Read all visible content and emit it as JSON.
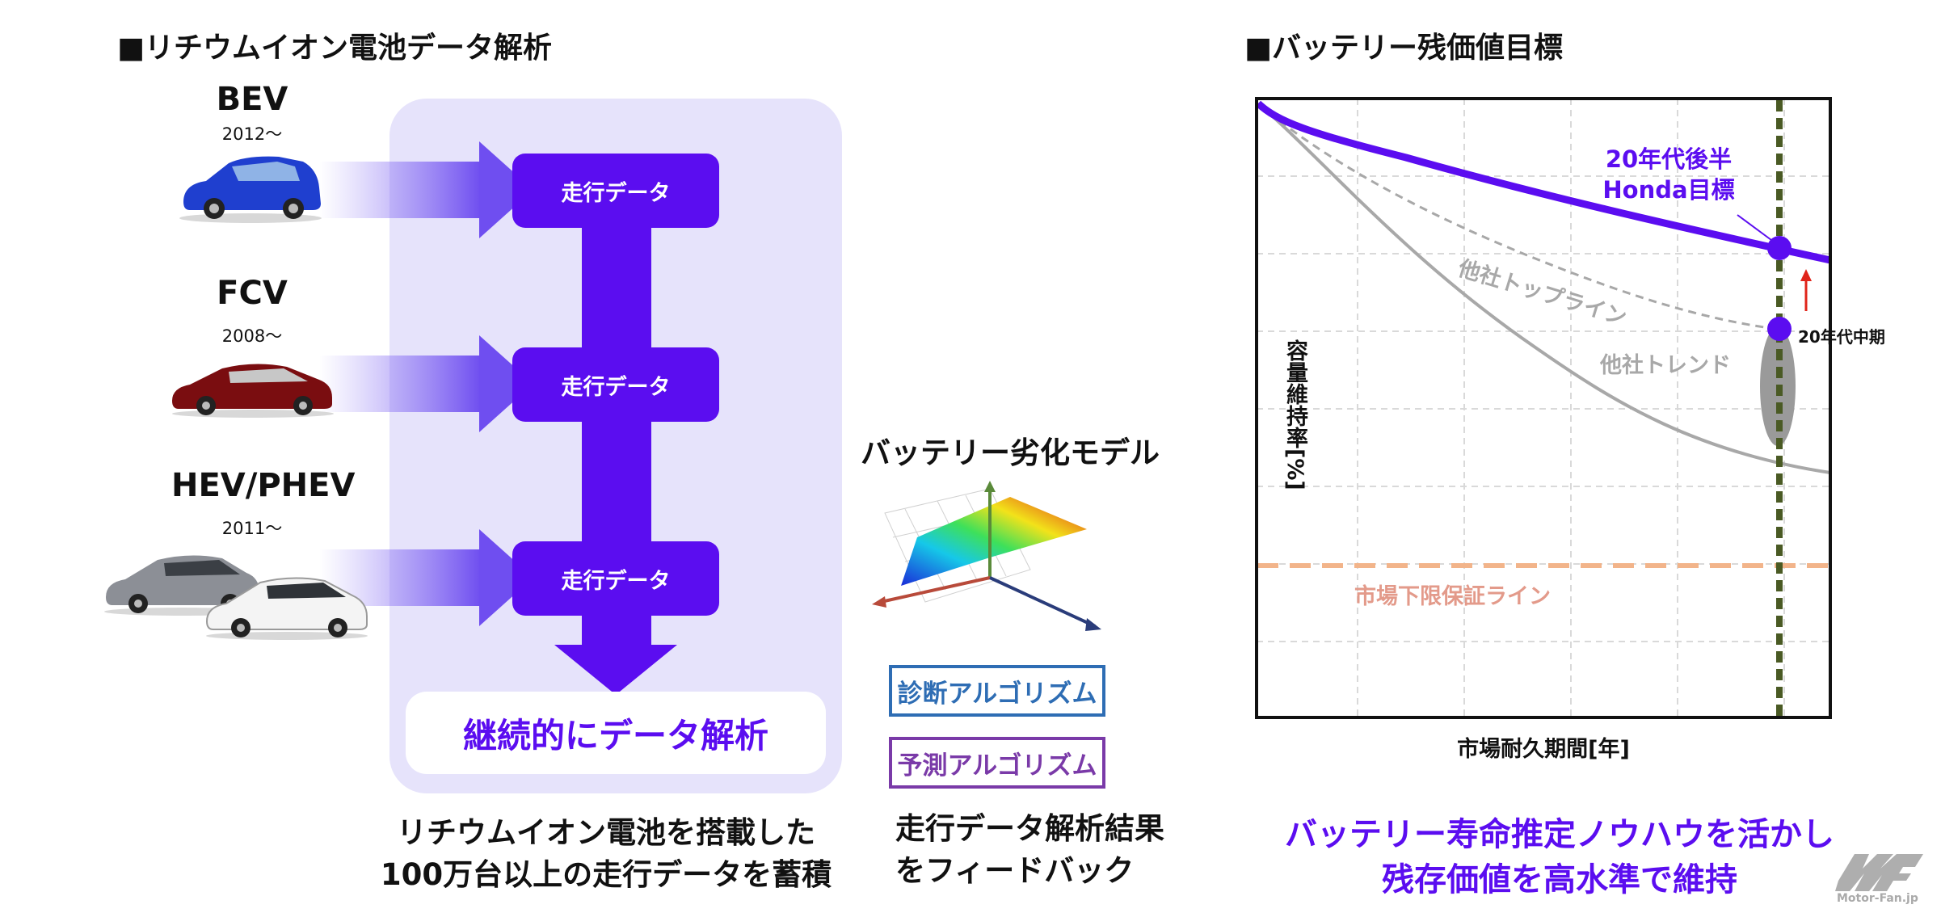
{
  "left": {
    "title": "■リチウムイオン電池データ解析",
    "vehicles": [
      {
        "name": "BEV",
        "year": "2012～"
      },
      {
        "name": "FCV",
        "year": "2008～"
      },
      {
        "name": "HEV/PHEV",
        "year": "2011～"
      }
    ],
    "data_box_label": "走行データ",
    "result_label": "継続的にデータ解析",
    "caption_line1": "リチウムイオン電池を搭載した",
    "caption_line2": "100万台以上の走行データを蓄積"
  },
  "middle": {
    "model_title": "バッテリー劣化モデル",
    "diagnosis_label": "診断アルゴリズム",
    "prediction_label": "予測アルゴリズム",
    "caption_line1": "走行データ解析結果",
    "caption_line2": "をフィードバック",
    "colors": {
      "diagnosis": "#2e6db4",
      "prediction": "#7a3aa8"
    }
  },
  "right": {
    "title": "■バッテリー残価値目標",
    "y_axis_label": "容量維持率[%]",
    "x_axis_label": "市場耐久期間[年]",
    "honda_label_line1": "20年代後半",
    "honda_label_line2": "Honda目標",
    "topline_label": "他社トップライン",
    "trend_label": "他社トレンド",
    "mid20s_label": "20年代中期",
    "floor_label": "市場下限保証ライン",
    "caption_line1": "バッテリー寿命推定ノウハウを活かし",
    "caption_line2": "残存価値を高水準で維持"
  },
  "watermark": {
    "logo_text": "Motor-Fan.jp"
  },
  "colors": {
    "purple": "#5b0df0",
    "panel": "#e6e3fb",
    "floor": "#f2b48a",
    "target_line": "#4a5a24",
    "gray": "#a8a8a8"
  }
}
